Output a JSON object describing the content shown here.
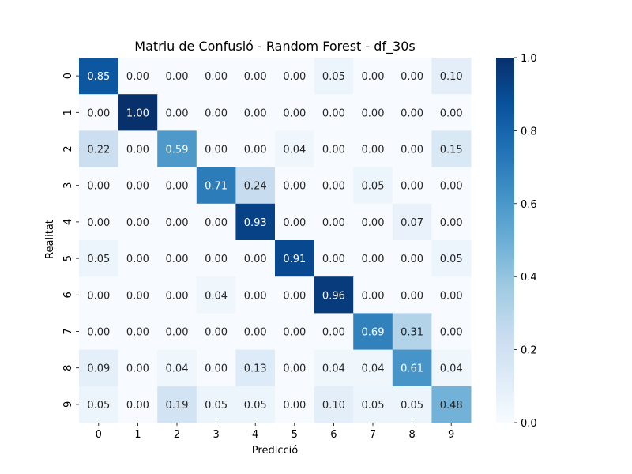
{
  "chart_data": {
    "type": "heatmap",
    "title": "Matriu de Confusió - Random Forest - df_30s",
    "xlabel": "Predicció",
    "ylabel": "Realitat",
    "x_categories": [
      "0",
      "1",
      "2",
      "3",
      "4",
      "5",
      "6",
      "7",
      "8",
      "9"
    ],
    "y_categories": [
      "0",
      "1",
      "2",
      "3",
      "4",
      "5",
      "6",
      "7",
      "8",
      "9"
    ],
    "values": [
      [
        0.85,
        0.0,
        0.0,
        0.0,
        0.0,
        0.0,
        0.05,
        0.0,
        0.0,
        0.1
      ],
      [
        0.0,
        1.0,
        0.0,
        0.0,
        0.0,
        0.0,
        0.0,
        0.0,
        0.0,
        0.0
      ],
      [
        0.22,
        0.0,
        0.59,
        0.0,
        0.0,
        0.04,
        0.0,
        0.0,
        0.0,
        0.15
      ],
      [
        0.0,
        0.0,
        0.0,
        0.71,
        0.24,
        0.0,
        0.0,
        0.05,
        0.0,
        0.0
      ],
      [
        0.0,
        0.0,
        0.0,
        0.0,
        0.93,
        0.0,
        0.0,
        0.0,
        0.07,
        0.0
      ],
      [
        0.05,
        0.0,
        0.0,
        0.0,
        0.0,
        0.91,
        0.0,
        0.0,
        0.0,
        0.05
      ],
      [
        0.0,
        0.0,
        0.0,
        0.04,
        0.0,
        0.0,
        0.96,
        0.0,
        0.0,
        0.0
      ],
      [
        0.0,
        0.0,
        0.0,
        0.0,
        0.0,
        0.0,
        0.0,
        0.69,
        0.31,
        0.0
      ],
      [
        0.09,
        0.0,
        0.04,
        0.0,
        0.13,
        0.0,
        0.04,
        0.04,
        0.61,
        0.04
      ],
      [
        0.05,
        0.0,
        0.19,
        0.05,
        0.05,
        0.0,
        0.1,
        0.05,
        0.05,
        0.48
      ]
    ],
    "colormap": "Blues",
    "colorbar": {
      "range": [
        0.0,
        1.0
      ],
      "ticks": [
        "0.0",
        "0.2",
        "0.4",
        "0.6",
        "0.8",
        "1.0"
      ]
    },
    "grid": false,
    "annotations": true
  }
}
